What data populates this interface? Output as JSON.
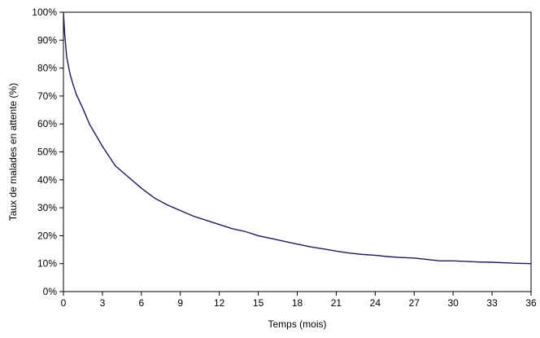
{
  "chart_data": {
    "type": "line",
    "xlabel": "Temps (mois)",
    "ylabel": "Taux de malades en attente (%)",
    "xlim": [
      0,
      36
    ],
    "ylim": [
      0,
      100
    ],
    "x_ticks": [
      0,
      3,
      6,
      9,
      12,
      15,
      18,
      21,
      24,
      27,
      30,
      33,
      36
    ],
    "x_tick_labels": [
      "0",
      "3",
      "6",
      "9",
      "12",
      "15",
      "18",
      "21",
      "24",
      "27",
      "30",
      "33",
      "36"
    ],
    "y_ticks": [
      0,
      10,
      20,
      30,
      40,
      50,
      60,
      70,
      80,
      90,
      100
    ],
    "y_tick_labels": [
      "0%",
      "10%",
      "20%",
      "30%",
      "40%",
      "50%",
      "60%",
      "70%",
      "80%",
      "90%",
      "100%"
    ],
    "grid": false,
    "line_color": "#1a1a5e",
    "series": [
      {
        "x": [
          0,
          0.1,
          0.25,
          0.5,
          0.75,
          1,
          1.5,
          2,
          2.5,
          3,
          3.5,
          4,
          5,
          6,
          7,
          8,
          9,
          10,
          11,
          12,
          13,
          14,
          15,
          16,
          17,
          18,
          19,
          20,
          21,
          22,
          23,
          24,
          25,
          26,
          27,
          28,
          29,
          30,
          31,
          32,
          33,
          34,
          35,
          36
        ],
        "y": [
          100,
          92,
          84,
          78,
          74,
          70.5,
          65.5,
          60,
          56,
          52,
          48.5,
          45,
          41,
          37,
          33.5,
          31,
          29,
          27,
          25.5,
          24,
          22.5,
          21.5,
          20,
          19,
          18,
          17,
          16,
          15.3,
          14.5,
          13.8,
          13.3,
          13,
          12.5,
          12.2,
          12,
          11.5,
          11,
          11,
          10.8,
          10.6,
          10.5,
          10.3,
          10.1,
          10
        ]
      }
    ]
  }
}
